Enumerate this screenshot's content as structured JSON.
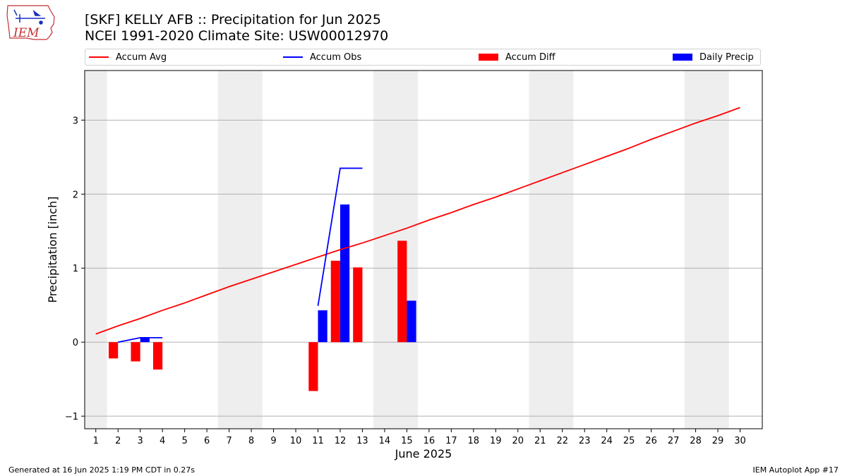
{
  "header": {
    "title_line1": "[SKF] KELLY AFB :: Precipitation for Jun 2025",
    "title_line2": "NCEI 1991-2020 Climate Site: USW00012970"
  },
  "logo": {
    "text": "IEM",
    "icon": "iem-iowa-state-logo-icon"
  },
  "legend": [
    {
      "label": "Accum Avg",
      "kind": "line",
      "color": "#ff0000"
    },
    {
      "label": "Accum Obs",
      "kind": "line",
      "color": "#0000ff"
    },
    {
      "label": "Accum Diff",
      "kind": "bar",
      "color": "#ff0000"
    },
    {
      "label": "Daily Precip",
      "kind": "bar",
      "color": "#0000ff"
    }
  ],
  "footer": {
    "left": "Generated at 16 Jun 2025 1:19 PM CDT in 0.27s",
    "right": "IEM Autoplot App #17"
  },
  "chart_data": {
    "type": "bar",
    "title": "[SKF] KELLY AFB :: Precipitation for Jun 2025",
    "subtitle": "NCEI 1991-2020 Climate Site: USW00012970",
    "xlabel": "June 2025",
    "ylabel": "Precipitation [inch]",
    "xlim": [
      0.5,
      31.0
    ],
    "ylim": [
      -1.17,
      3.67
    ],
    "x_ticks": [
      "1",
      "2",
      "3",
      "4",
      "5",
      "6",
      "7",
      "8",
      "9",
      "10",
      "11",
      "12",
      "13",
      "14",
      "15",
      "16",
      "17",
      "18",
      "19",
      "20",
      "21",
      "22",
      "23",
      "24",
      "25",
      "26",
      "27",
      "28",
      "29",
      "30"
    ],
    "y_ticks": [
      -1,
      0,
      1,
      2,
      3
    ],
    "grid": "horizontal",
    "legend_position": "top",
    "weekend_shading": [
      [
        0.5,
        1.5
      ],
      [
        6.5,
        8.5
      ],
      [
        13.5,
        15.5
      ],
      [
        20.5,
        22.5
      ],
      [
        27.5,
        29.5
      ]
    ],
    "series": [
      {
        "name": "Accum Avg",
        "type": "line",
        "color": "#ff0000",
        "x": [
          1,
          2,
          3,
          4,
          5,
          6,
          7,
          8,
          9,
          10,
          11,
          12,
          13,
          14,
          15,
          16,
          17,
          18,
          19,
          20,
          21,
          22,
          23,
          24,
          25,
          26,
          27,
          28,
          29,
          30
        ],
        "values": [
          0.11,
          0.22,
          0.32,
          0.43,
          0.53,
          0.64,
          0.75,
          0.85,
          0.95,
          1.05,
          1.15,
          1.25,
          1.34,
          1.44,
          1.54,
          1.65,
          1.75,
          1.86,
          1.96,
          2.07,
          2.18,
          2.29,
          2.4,
          2.51,
          2.62,
          2.74,
          2.85,
          2.96,
          3.06,
          3.17
        ]
      },
      {
        "name": "Accum Obs",
        "type": "line",
        "color": "#0000ff",
        "x": [
          2,
          3,
          4,
          null,
          11,
          12,
          13
        ],
        "values": [
          0.0,
          0.06,
          0.06,
          null,
          0.49,
          2.35,
          2.35
        ]
      },
      {
        "name": "Accum Diff",
        "type": "bar",
        "color": "#ff0000",
        "x": [
          2,
          3,
          4,
          11,
          12,
          13,
          15
        ],
        "values": [
          -0.22,
          -0.26,
          -0.37,
          -0.66,
          1.1,
          1.01,
          1.37
        ]
      },
      {
        "name": "Daily Precip",
        "type": "bar",
        "color": "#0000ff",
        "x": [
          3,
          11,
          12,
          15
        ],
        "values": [
          0.06,
          0.43,
          1.86,
          0.56
        ]
      }
    ]
  }
}
